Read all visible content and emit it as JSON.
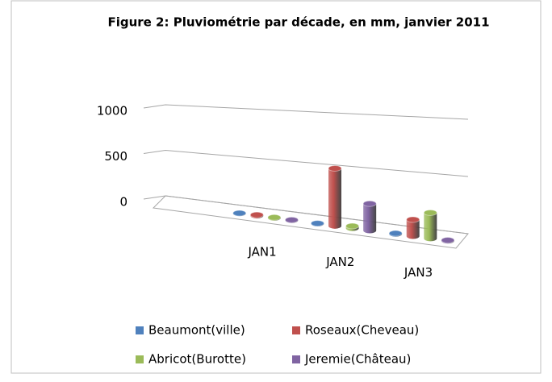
{
  "chart_data": {
    "type": "bar",
    "title": "Figure 2: Pluviométrie par décade, en mm, janvier 2011",
    "categories": [
      "JAN1",
      "JAN2",
      "JAN3"
    ],
    "series": [
      {
        "name": "Beaumont(ville)",
        "color": "#4f81bd",
        "values": [
          2,
          3,
          5
        ]
      },
      {
        "name": "Roseaux(Cheveau)",
        "color": "#c0504d",
        "values": [
          8,
          550,
          150
        ]
      },
      {
        "name": "Abricot(Burotte)",
        "color": "#9bbb59",
        "values": [
          5,
          20,
          230
        ]
      },
      {
        "name": "Jeremie(Château)",
        "color": "#8064a2",
        "values": [
          3,
          250,
          5
        ]
      }
    ],
    "ylim": [
      0,
      1000
    ],
    "yticks": [
      0,
      500,
      1000
    ],
    "grid": true
  }
}
